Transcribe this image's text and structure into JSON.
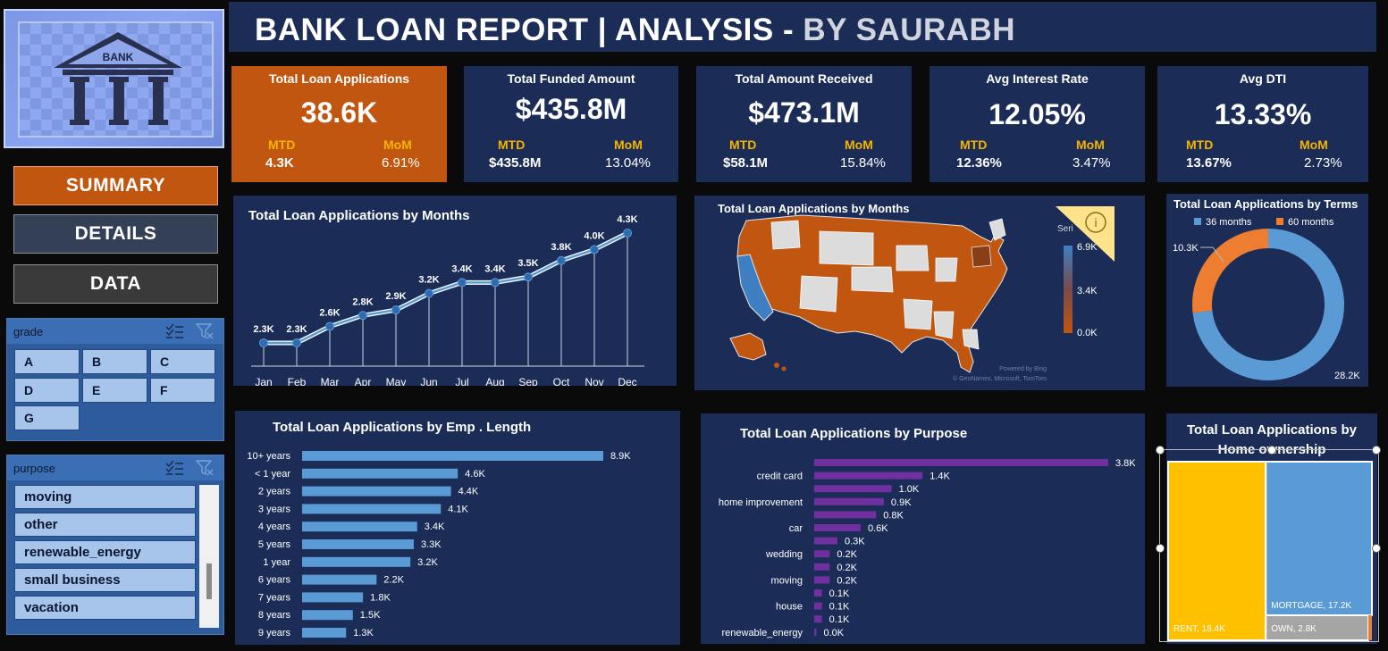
{
  "header": {
    "title_main": "BANK LOAN REPORT | ANALYSIS - ",
    "title_by": "BY SAURABH"
  },
  "logo": {
    "text": "BANK",
    "icon": "bank-building-icon"
  },
  "nav": {
    "summary": "SUMMARY",
    "details": "DETAILS",
    "data": "DATA"
  },
  "colors": {
    "navy": "#1b2d57",
    "orange": "#c0560f",
    "blue": "#5b9bd5",
    "gold": "#f5b400",
    "purple": "#7030a0",
    "yellow": "#ffc000"
  },
  "kpis": [
    {
      "title": "Total Loan Applications",
      "value": "38.6K",
      "mtd_label": "MTD",
      "mtd": "4.3K",
      "mom_label": "MoM",
      "mom": "6.91%"
    },
    {
      "title": "Total Funded Amount",
      "value": "$435.8M",
      "mtd_label": "MTD",
      "mtd": "$435.8M",
      "mom_label": "MoM",
      "mom": "13.04%"
    },
    {
      "title": "Total Amount Received",
      "value": "$473.1M",
      "mtd_label": "MTD",
      "mtd": "$58.1M",
      "mom_label": "MoM",
      "mom": "15.84%"
    },
    {
      "title": "Avg Interest Rate",
      "value": "12.05%",
      "mtd_label": "MTD",
      "mtd": "12.36%",
      "mom_label": "MoM",
      "mom": "3.47%"
    },
    {
      "title": "Avg DTI",
      "value": "13.33%",
      "mtd_label": "MTD",
      "mtd": "13.67%",
      "mom_label": "MoM",
      "mom": "2.73%"
    }
  ],
  "slicers": {
    "grade": {
      "name": "grade",
      "items": [
        "A",
        "B",
        "C",
        "D",
        "E",
        "F",
        "G"
      ]
    },
    "purpose": {
      "name": "purpose",
      "items": [
        "moving",
        "other",
        "renewable_energy",
        "small business",
        "vacation"
      ]
    }
  },
  "chart_data": [
    {
      "type": "line",
      "title": "Total Loan Applications by Months",
      "categories": [
        "Jan",
        "Feb",
        "Mar",
        "Apr",
        "May",
        "Jun",
        "Jul",
        "Aug",
        "Sep",
        "Oct",
        "Nov",
        "Dec"
      ],
      "values": [
        2.3,
        2.3,
        2.6,
        2.8,
        2.9,
        3.2,
        3.4,
        3.4,
        3.5,
        3.8,
        4.0,
        4.3
      ],
      "labels": [
        "2.3K",
        "2.3K",
        "2.6K",
        "2.8K",
        "2.9K",
        "3.2K",
        "3.4K",
        "3.4K",
        "3.5K",
        "3.8K",
        "4.0K",
        "4.3K"
      ],
      "unit": "K"
    },
    {
      "type": "map",
      "title": "Total Loan Applications by Months",
      "legend": {
        "series_label": "Seri",
        "max": "6.9K",
        "mid": "3.4K",
        "min": "0.0K"
      },
      "credit": [
        "Powered by Bing",
        "© GeoNames, Microsoft, TomTom"
      ]
    },
    {
      "type": "pie",
      "title": "Total Loan Applications by Terms",
      "series": [
        {
          "name": "36 months",
          "value": 28.2,
          "label": "28.2K"
        },
        {
          "name": "60 months",
          "value": 10.3,
          "label": "10.3K"
        }
      ],
      "unit": "K",
      "legend": "top"
    },
    {
      "type": "bar",
      "title": "Total Loan Applications by Emp . Length",
      "categories": [
        "10+ years",
        "< 1 year",
        "2 years",
        "3 years",
        "4 years",
        "5 years",
        "1 year",
        "6 years",
        "7 years",
        "8 years",
        "9 years"
      ],
      "values": [
        8.9,
        4.6,
        4.4,
        4.1,
        3.4,
        3.3,
        3.2,
        2.2,
        1.8,
        1.5,
        1.3
      ],
      "labels": [
        "8.9K",
        "4.6K",
        "4.4K",
        "4.1K",
        "3.4K",
        "3.3K",
        "3.2K",
        "2.2K",
        "1.8K",
        "1.5K",
        "1.3K"
      ],
      "unit": "K"
    },
    {
      "type": "bar",
      "title": "Total Loan Applications by Purpose",
      "categories": [
        "",
        "credit card",
        "",
        "home improvement",
        "",
        "car",
        "",
        "wedding",
        "",
        "moving",
        "",
        "house",
        "",
        "renewable_energy"
      ],
      "values": [
        3.8,
        1.4,
        1.0,
        0.9,
        0.8,
        0.6,
        0.3,
        0.2,
        0.2,
        0.2,
        0.1,
        0.1,
        0.1,
        0.0
      ],
      "labels": [
        "3.8K",
        "1.4K",
        "1.0K",
        "0.9K",
        "0.8K",
        "0.6K",
        "0.3K",
        "0.2K",
        "0.2K",
        "0.2K",
        "0.1K",
        "0.1K",
        "0.1K",
        "0.0K"
      ],
      "unit": "K"
    },
    {
      "type": "treemap",
      "title": "Total Loan Applications by Home ownership",
      "series": [
        {
          "name": "RENT",
          "value": 18.4,
          "label": "RENT, 18.4K"
        },
        {
          "name": "MORTGAGE",
          "value": 17.2,
          "label": "MORTGAGE, 17.2K"
        },
        {
          "name": "OWN",
          "value": 2.8,
          "label": "OWN, 2.8K"
        }
      ],
      "unit": "K"
    }
  ]
}
